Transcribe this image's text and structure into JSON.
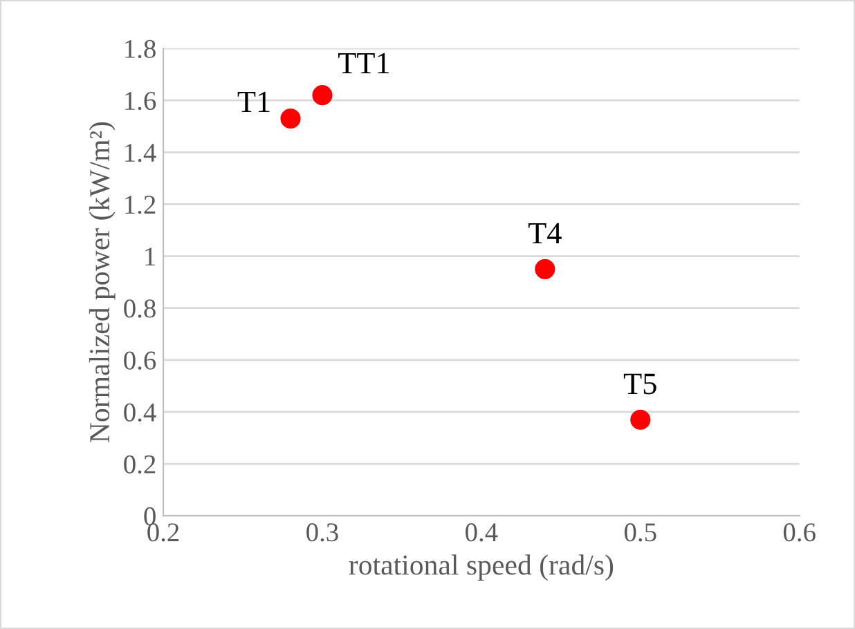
{
  "chart_data": {
    "type": "scatter",
    "xlabel": "rotational speed (rad/s)",
    "ylabel": "Normalized power (kW/m²)",
    "x": [
      0.28,
      0.3,
      0.44,
      0.5
    ],
    "series": [
      {
        "color": "#ff0000",
        "values": [
          1.53,
          1.62,
          0.95,
          0.37
        ]
      }
    ],
    "annotations": [
      {
        "text": "T1",
        "x": 0.28,
        "y": 1.53
      },
      {
        "text": "TT1",
        "x": 0.3,
        "y": 1.62
      },
      {
        "text": "T4",
        "x": 0.44,
        "y": 0.95
      },
      {
        "text": "T5",
        "x": 0.5,
        "y": 0.37
      }
    ],
    "xlim": [
      0.2,
      0.6
    ],
    "xticks": [
      0.2,
      0.3,
      0.4,
      0.5,
      0.6
    ],
    "ylim": [
      0,
      1.8
    ],
    "yticks": [
      0,
      0.2,
      0.4,
      0.6,
      0.8,
      1,
      1.2,
      1.4,
      1.6,
      1.8
    ],
    "grid": "y",
    "marker": "circle"
  }
}
